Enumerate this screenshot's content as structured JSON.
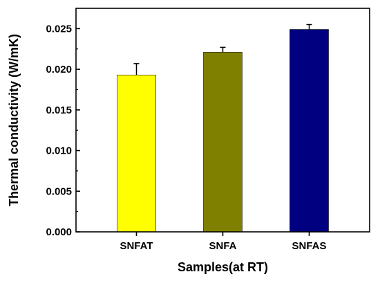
{
  "chart_data": {
    "type": "bar",
    "title": "",
    "xlabel": "Samples(at RT)",
    "ylabel": "Thermal conductivity (W/mK)",
    "ylim": [
      0,
      0.0275
    ],
    "yticks": [
      "0.000",
      "0.005",
      "0.010",
      "0.015",
      "0.020",
      "0.025"
    ],
    "ytick_values": [
      0,
      0.005,
      0.01,
      0.015,
      0.02,
      0.025
    ],
    "categories": [
      "SNFAT",
      "SNFA",
      "SNFAS"
    ],
    "values": [
      0.0193,
      0.0221,
      0.0249
    ],
    "errors": [
      0.0014,
      0.0006,
      0.0006
    ],
    "colors": [
      "#FFFF00",
      "#808000",
      "#000080"
    ],
    "grid": false,
    "legend": "none"
  }
}
